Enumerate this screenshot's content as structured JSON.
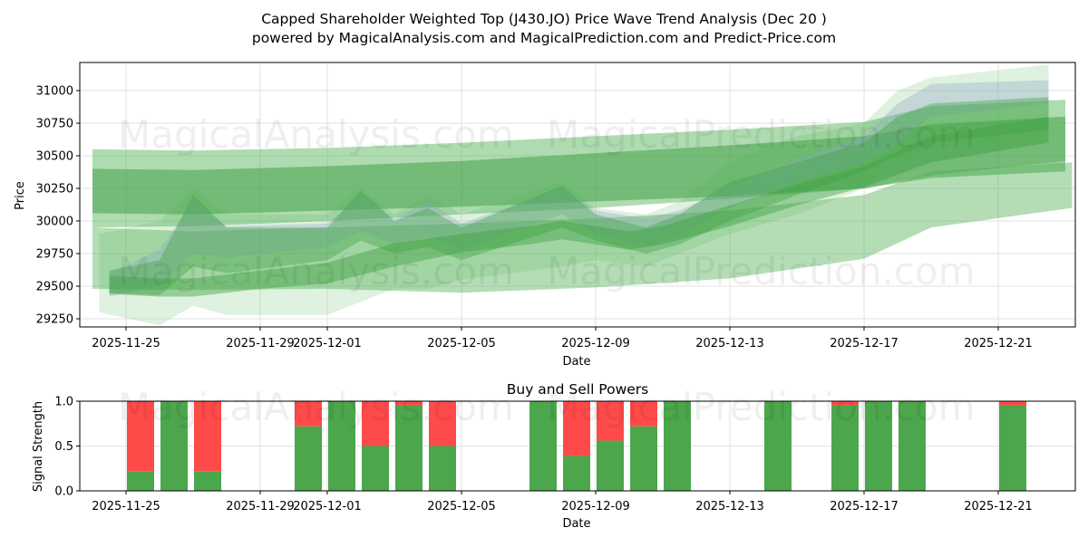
{
  "title_line1": "Capped Shareholder Weighted Top (J430.JO) Price Wave Trend Analysis (Dec 20 )",
  "title_line2": "powered by MagicalAnalysis.com and MagicalPrediction.com and Predict-Price.com",
  "watermarks": [
    "MagicalAnalysis.com",
    "MagicalPrediction.com"
  ],
  "colors": {
    "buy": "#4ca64c",
    "sell": "#ff4a4a",
    "band": "#4caf50",
    "wave": "#9aa6e0"
  },
  "chart_data": [
    {
      "type": "area",
      "title": "",
      "xlabel": "Date",
      "ylabel": "Price",
      "x_origin_date": "2025-11-25",
      "xlim_days": [
        -1.4,
        28.3
      ],
      "ylim": [
        29194,
        31208
      ],
      "grid": true,
      "x_ticks": [
        {
          "day": 0,
          "label": "2025-11-25"
        },
        {
          "day": 4,
          "label": "2025-11-29"
        },
        {
          "day": 6,
          "label": "2025-12-01"
        },
        {
          "day": 10,
          "label": "2025-12-05"
        },
        {
          "day": 14,
          "label": "2025-12-09"
        },
        {
          "day": 18,
          "label": "2025-12-13"
        },
        {
          "day": 22,
          "label": "2025-12-17"
        },
        {
          "day": 26,
          "label": "2025-12-21"
        }
      ],
      "y_ticks": [
        29250,
        29500,
        29750,
        30000,
        30250,
        30500,
        30750,
        31000
      ],
      "bands": [
        {
          "name": "upper-trend-band",
          "color": "#4caf50",
          "opacity": 0.45,
          "points": [
            [
              -1,
              30550,
              29950
            ],
            [
              2,
              30540,
              29960
            ],
            [
              6,
              30560,
              30000
            ],
            [
              10,
              30600,
              30050
            ],
            [
              14,
              30650,
              30100
            ],
            [
              18,
              30700,
              30170
            ],
            [
              22,
              30760,
              30250
            ],
            [
              24,
              30880,
              30350
            ],
            [
              28,
              30930,
              30460
            ]
          ]
        },
        {
          "name": "core-trend-band",
          "color": "#3a9c3e",
          "opacity": 0.5,
          "points": [
            [
              -1,
              30400,
              30060
            ],
            [
              2,
              30390,
              30050
            ],
            [
              6,
              30420,
              30080
            ],
            [
              10,
              30460,
              30110
            ],
            [
              14,
              30520,
              30150
            ],
            [
              18,
              30580,
              30190
            ],
            [
              22,
              30650,
              30250
            ],
            [
              24,
              30740,
              30330
            ],
            [
              28,
              30800,
              30380
            ]
          ]
        },
        {
          "name": "lower-trend-band",
          "color": "#4caf50",
          "opacity": 0.42,
          "points": [
            [
              -1,
              29950,
              29480
            ],
            [
              2,
              29920,
              29470
            ],
            [
              6,
              29950,
              29480
            ],
            [
              10,
              29980,
              29450
            ],
            [
              14,
              30020,
              29490
            ],
            [
              18,
              30080,
              29560
            ],
            [
              22,
              30200,
              29710
            ],
            [
              24,
              30380,
              29950
            ],
            [
              28.2,
              30450,
              30100
            ]
          ]
        },
        {
          "name": "wave-band-blue",
          "color": "#9aa6e0",
          "opacity": 0.35,
          "points": [
            [
              -0.5,
              29600,
              29420
            ],
            [
              1,
              29780,
              29500
            ],
            [
              2,
              30150,
              29750
            ],
            [
              3,
              29960,
              29720
            ],
            [
              6,
              29980,
              29800
            ],
            [
              7,
              30200,
              29920
            ],
            [
              8,
              30020,
              29820
            ],
            [
              9,
              30150,
              29880
            ],
            [
              10,
              29980,
              29780
            ],
            [
              13,
              30250,
              30050
            ],
            [
              14,
              30080,
              29900
            ],
            [
              15.5,
              30020,
              29800
            ],
            [
              16.5,
              30080,
              29880
            ],
            [
              18,
              30260,
              30100
            ],
            [
              20,
              30470,
              30300
            ],
            [
              22,
              30650,
              30450
            ],
            [
              23,
              30900,
              30600
            ],
            [
              24,
              31050,
              30800
            ],
            [
              27.5,
              31080,
              30900
            ]
          ]
        },
        {
          "name": "wave-band-green",
          "color": "#3f9f43",
          "opacity": 0.4,
          "points": [
            [
              -0.5,
              29620,
              29450
            ],
            [
              1,
              29700,
              29430
            ],
            [
              2,
              30200,
              29650
            ],
            [
              3,
              29950,
              29600
            ],
            [
              6,
              29950,
              29700
            ],
            [
              7,
              30230,
              29850
            ],
            [
              8,
              30000,
              29750
            ],
            [
              9,
              30100,
              29800
            ],
            [
              10,
              29950,
              29700
            ],
            [
              13,
              30270,
              29950
            ],
            [
              14,
              30050,
              29850
            ],
            [
              15.5,
              29950,
              29750
            ],
            [
              16.5,
              30050,
              29820
            ],
            [
              18,
              30300,
              30000
            ],
            [
              20,
              30450,
              30200
            ],
            [
              22,
              30600,
              30380
            ],
            [
              23,
              30800,
              30500
            ],
            [
              24,
              30900,
              30600
            ],
            [
              27.5,
              30950,
              30700
            ]
          ]
        },
        {
          "name": "lower-wave-band",
          "color": "#3f9f43",
          "opacity": 0.45,
          "points": [
            [
              -0.5,
              29580,
              29440
            ],
            [
              1,
              29560,
              29420
            ],
            [
              2,
              29560,
              29420
            ],
            [
              4,
              29620,
              29480
            ],
            [
              6,
              29680,
              29520
            ],
            [
              8,
              29830,
              29650
            ],
            [
              10,
              29900,
              29760
            ],
            [
              12,
              29960,
              29820
            ],
            [
              13,
              30000,
              29860
            ],
            [
              15,
              29920,
              29780
            ],
            [
              16,
              29960,
              29820
            ],
            [
              18,
              30120,
              29960
            ],
            [
              20,
              30280,
              30120
            ],
            [
              22,
              30420,
              30260
            ],
            [
              24,
              30650,
              30450
            ],
            [
              27.5,
              30800,
              30600
            ]
          ]
        },
        {
          "name": "outer-halo-band",
          "color": "#4caf50",
          "opacity": 0.18,
          "points": [
            [
              -0.8,
              29900,
              29300
            ],
            [
              1,
              30000,
              29200
            ],
            [
              2,
              30250,
              29350
            ],
            [
              3,
              30050,
              29280
            ],
            [
              6,
              30050,
              29280
            ],
            [
              7,
              30250,
              29380
            ],
            [
              8,
              30050,
              29480
            ],
            [
              9,
              30200,
              29480
            ],
            [
              10,
              30050,
              29550
            ],
            [
              13,
              30300,
              29650
            ],
            [
              14,
              30100,
              29700
            ],
            [
              15.5,
              30050,
              29650
            ],
            [
              16.5,
              30150,
              29750
            ],
            [
              18,
              30450,
              29900
            ],
            [
              20,
              30650,
              30050
            ],
            [
              22,
              30750,
              30250
            ],
            [
              23,
              31000,
              30450
            ],
            [
              24,
              31100,
              30550
            ],
            [
              27.5,
              31200,
              30650
            ]
          ]
        }
      ]
    },
    {
      "type": "bar",
      "title": "Buy and Sell Powers",
      "xlabel": "Date",
      "ylabel": "Signal Strength",
      "ylim": [
        0,
        1
      ],
      "y_ticks": [
        "0.0",
        "0.5",
        "1.0"
      ],
      "series": [
        {
          "name": "Buy",
          "color": "#4ca64c"
        },
        {
          "name": "Sell",
          "color": "#ff4a4a"
        }
      ],
      "bars": [
        {
          "date": "2025-11-26",
          "day": 1,
          "buy": 0.22
        },
        {
          "date": "2025-11-27",
          "day": 2,
          "buy": 1.0
        },
        {
          "date": "2025-11-28",
          "day": 3,
          "buy": 0.22
        },
        {
          "date": "2025-12-01",
          "day": 6,
          "buy": 0.72
        },
        {
          "date": "2025-12-02",
          "day": 7,
          "buy": 1.0
        },
        {
          "date": "2025-12-03",
          "day": 8,
          "buy": 0.5
        },
        {
          "date": "2025-12-04",
          "day": 9,
          "buy": 0.95
        },
        {
          "date": "2025-12-05",
          "day": 10,
          "buy": 0.5
        },
        {
          "date": "2025-12-08",
          "day": 13,
          "buy": 1.0
        },
        {
          "date": "2025-12-09",
          "day": 14,
          "buy": 0.39
        },
        {
          "date": "2025-12-10",
          "day": 15,
          "buy": 0.56
        },
        {
          "date": "2025-12-11",
          "day": 16,
          "buy": 0.72
        },
        {
          "date": "2025-12-12",
          "day": 17,
          "buy": 1.0
        },
        {
          "date": "2025-12-15",
          "day": 20,
          "buy": 1.0
        },
        {
          "date": "2025-12-17",
          "day": 22,
          "buy": 0.95
        },
        {
          "date": "2025-12-18",
          "day": 23,
          "buy": 1.0
        },
        {
          "date": "2025-12-19",
          "day": 24,
          "buy": 1.0
        },
        {
          "date": "2025-12-22",
          "day": 27,
          "buy": 0.95
        }
      ]
    }
  ]
}
